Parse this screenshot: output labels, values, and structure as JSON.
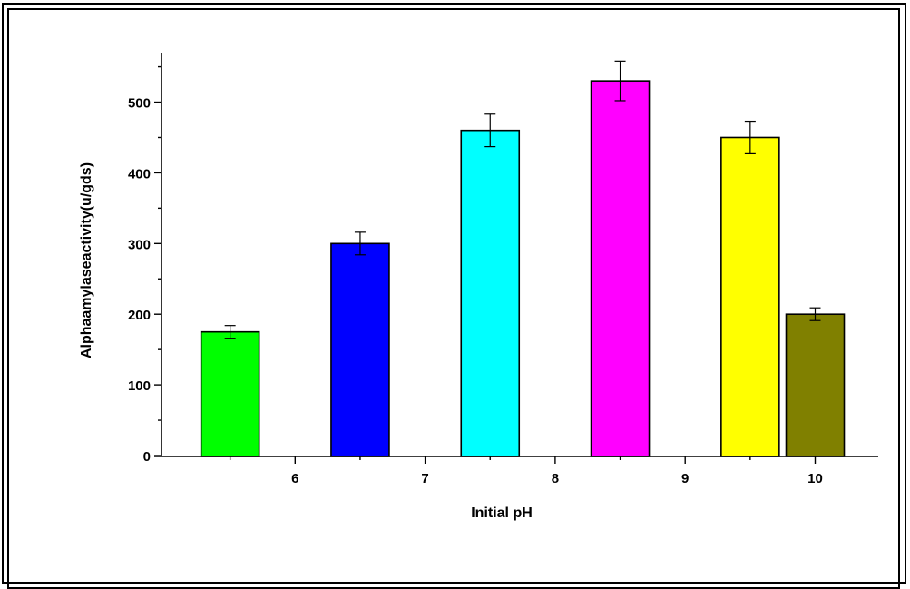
{
  "chart_data": {
    "type": "bar",
    "xlabel": "Initial pH",
    "ylabel": "Alphaamylaseactivity(u/gds)",
    "x_ticks": [
      "6",
      "7",
      "8",
      "9",
      "10"
    ],
    "x_tick_values": [
      6,
      7,
      8,
      9,
      10
    ],
    "xlim": [
      5,
      10.5
    ],
    "ylim": [
      0,
      570
    ],
    "y_ticks": [
      0,
      100,
      200,
      300,
      400,
      500
    ],
    "y_minor_step": 50,
    "grid": false,
    "legend": "none",
    "bars": [
      {
        "x": 5.5,
        "value": 175,
        "error": 9,
        "color": "#00ff00"
      },
      {
        "x": 6.5,
        "value": 300,
        "error": 16,
        "color": "#0000ff"
      },
      {
        "x": 7.5,
        "value": 460,
        "error": 23,
        "color": "#00ffff"
      },
      {
        "x": 8.5,
        "value": 530,
        "error": 28,
        "color": "#ff00ff"
      },
      {
        "x": 9.5,
        "value": 450,
        "error": 23,
        "color": "#ffff00"
      },
      {
        "x": 10.0,
        "value": 200,
        "error": 9,
        "color": "#808000"
      }
    ]
  }
}
